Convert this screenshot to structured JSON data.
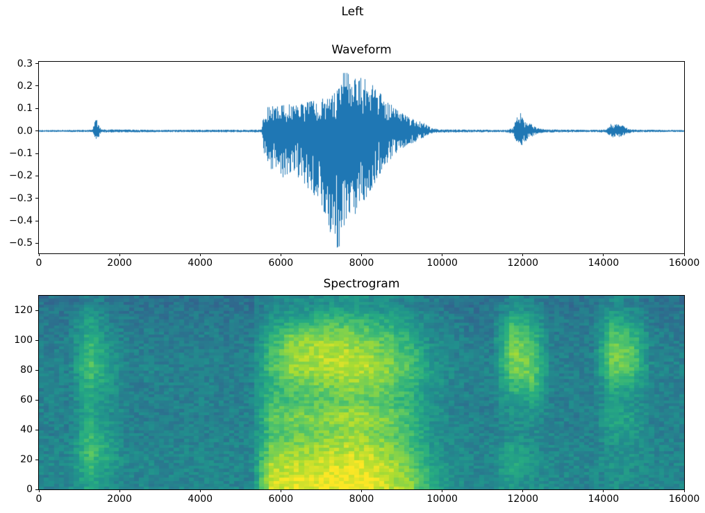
{
  "figure": {
    "title": "Left",
    "background": "#ffffff"
  },
  "chart_data": [
    {
      "type": "line",
      "title": "Waveform",
      "xlabel": "",
      "ylabel": "",
      "line_color": "#1f77b4",
      "grid": false,
      "legend": null,
      "xlim": [
        0,
        16000
      ],
      "ylim": [
        -0.545,
        0.308
      ],
      "xticks": {
        "values": [
          0,
          2000,
          4000,
          6000,
          8000,
          10000,
          12000,
          14000,
          16000
        ],
        "labels": [
          "0",
          "2000",
          "4000",
          "6000",
          "8000",
          "10000",
          "12000",
          "14000",
          "16000"
        ]
      },
      "yticks": {
        "values": [
          0.3,
          0.2,
          0.1,
          0.0,
          -0.1,
          -0.2,
          -0.3,
          -0.4,
          -0.5
        ],
        "labels": [
          "0.3",
          "0.2",
          "0.1",
          "0.0",
          "−0.1",
          "−0.2",
          "−0.3",
          "−0.4",
          "−0.5"
        ]
      },
      "envelope_format": "triples of [sample_x, min_amplitude, max_amplitude] describing the waveform envelope",
      "envelope": [
        [
          0,
          -0.004,
          0.004
        ],
        [
          1330,
          -0.005,
          0.005
        ],
        [
          1380,
          -0.03,
          0.04
        ],
        [
          1430,
          -0.045,
          0.055
        ],
        [
          1490,
          -0.025,
          0.03
        ],
        [
          1540,
          -0.007,
          0.007
        ],
        [
          3000,
          -0.005,
          0.005
        ],
        [
          5520,
          -0.006,
          0.006
        ],
        [
          5580,
          -0.12,
          0.09
        ],
        [
          5700,
          -0.18,
          0.11
        ],
        [
          5900,
          -0.16,
          0.11
        ],
        [
          6100,
          -0.22,
          0.12
        ],
        [
          6400,
          -0.2,
          0.12
        ],
        [
          6700,
          -0.26,
          0.13
        ],
        [
          7000,
          -0.32,
          0.14
        ],
        [
          7200,
          -0.44,
          0.16
        ],
        [
          7400,
          -0.52,
          0.18
        ],
        [
          7550,
          -0.5,
          0.27
        ],
        [
          7700,
          -0.42,
          0.25
        ],
        [
          7900,
          -0.35,
          0.24
        ],
        [
          8100,
          -0.3,
          0.23
        ],
        [
          8300,
          -0.24,
          0.2
        ],
        [
          8600,
          -0.15,
          0.14
        ],
        [
          8900,
          -0.09,
          0.09
        ],
        [
          9200,
          -0.06,
          0.06
        ],
        [
          9500,
          -0.035,
          0.04
        ],
        [
          9700,
          -0.015,
          0.018
        ],
        [
          9900,
          -0.007,
          0.007
        ],
        [
          11500,
          -0.005,
          0.005
        ],
        [
          11750,
          -0.012,
          0.012
        ],
        [
          11850,
          -0.055,
          0.065
        ],
        [
          11950,
          -0.07,
          0.08
        ],
        [
          12050,
          -0.05,
          0.055
        ],
        [
          12200,
          -0.028,
          0.032
        ],
        [
          12350,
          -0.014,
          0.015
        ],
        [
          12550,
          -0.007,
          0.007
        ],
        [
          13800,
          -0.005,
          0.005
        ],
        [
          14080,
          -0.008,
          0.008
        ],
        [
          14180,
          -0.027,
          0.032
        ],
        [
          14320,
          -0.03,
          0.03
        ],
        [
          14480,
          -0.022,
          0.024
        ],
        [
          14620,
          -0.01,
          0.01
        ],
        [
          14800,
          -0.006,
          0.006
        ],
        [
          16000,
          -0.004,
          0.004
        ]
      ]
    },
    {
      "type": "heatmap",
      "title": "Spectrogram",
      "xlabel": "",
      "ylabel": "",
      "colormap": "viridis",
      "legend": null,
      "xlim": [
        0,
        16000
      ],
      "ylim": [
        0,
        130
      ],
      "xticks": {
        "values": [
          0,
          2000,
          4000,
          6000,
          8000,
          10000,
          12000,
          14000,
          16000
        ],
        "labels": [
          "0",
          "2000",
          "4000",
          "6000",
          "8000",
          "10000",
          "12000",
          "14000",
          "16000"
        ]
      },
      "yticks": {
        "values": [
          0,
          20,
          40,
          60,
          80,
          100,
          120
        ],
        "labels": [
          "0",
          "20",
          "40",
          "60",
          "80",
          "100",
          "120"
        ]
      },
      "grid_format": "32 time columns left-to-right (each 500 samples wide); each profile lists 12 normalized intensities from frequency 0 (bottom) to 130 (top)",
      "grid": {
        "columns": [
          "bg1",
          "bg2",
          "stripe",
          "stripe_dim",
          "bg1",
          "bg2",
          "bg3",
          "bg1",
          "bg2",
          "bg3",
          "bg1",
          "onset",
          "sp1",
          "sp2",
          "sp3",
          "sp4",
          "sp3b",
          "sp5",
          "sp6",
          "fade",
          "bg4",
          "bg3",
          "bg2",
          "burst1",
          "burst2",
          "bg3",
          "bg2",
          "bg1",
          "burst3",
          "burst4",
          "bg2",
          "bg1"
        ],
        "profiles": {
          "bg1": [
            0.45,
            0.46,
            0.45,
            0.44,
            0.44,
            0.45,
            0.43,
            0.44,
            0.44,
            0.42,
            0.41,
            0.38
          ],
          "bg2": [
            0.46,
            0.47,
            0.46,
            0.44,
            0.43,
            0.44,
            0.44,
            0.45,
            0.43,
            0.43,
            0.41,
            0.37
          ],
          "bg3": [
            0.46,
            0.46,
            0.45,
            0.45,
            0.44,
            0.43,
            0.44,
            0.44,
            0.43,
            0.42,
            0.4,
            0.38
          ],
          "bg4": [
            0.5,
            0.5,
            0.48,
            0.47,
            0.46,
            0.46,
            0.46,
            0.47,
            0.45,
            0.44,
            0.42,
            0.39
          ],
          "stripe": [
            0.6,
            0.68,
            0.72,
            0.66,
            0.62,
            0.6,
            0.66,
            0.72,
            0.7,
            0.64,
            0.58,
            0.46
          ],
          "stripe_dim": [
            0.5,
            0.56,
            0.58,
            0.54,
            0.5,
            0.5,
            0.54,
            0.56,
            0.52,
            0.48,
            0.45,
            0.4
          ],
          "onset": [
            0.92,
            0.88,
            0.78,
            0.7,
            0.74,
            0.68,
            0.64,
            0.7,
            0.68,
            0.62,
            0.52,
            0.44
          ],
          "sp1": [
            0.95,
            0.9,
            0.83,
            0.74,
            0.78,
            0.7,
            0.74,
            0.84,
            0.84,
            0.78,
            0.58,
            0.48
          ],
          "sp2": [
            0.96,
            0.92,
            0.84,
            0.78,
            0.8,
            0.72,
            0.78,
            0.87,
            0.88,
            0.82,
            0.62,
            0.48
          ],
          "sp3": [
            0.98,
            0.94,
            0.88,
            0.8,
            0.84,
            0.74,
            0.8,
            0.9,
            0.9,
            0.83,
            0.68,
            0.52
          ],
          "sp4": [
            1.0,
            0.96,
            0.9,
            0.84,
            0.86,
            0.77,
            0.84,
            0.91,
            0.88,
            0.8,
            0.68,
            0.52
          ],
          "sp3b": [
            0.97,
            0.94,
            0.88,
            0.82,
            0.84,
            0.74,
            0.82,
            0.89,
            0.84,
            0.75,
            0.62,
            0.5
          ],
          "sp5": [
            0.9,
            0.87,
            0.8,
            0.75,
            0.77,
            0.7,
            0.75,
            0.8,
            0.75,
            0.7,
            0.58,
            0.47
          ],
          "sp6": [
            0.8,
            0.76,
            0.7,
            0.66,
            0.68,
            0.62,
            0.66,
            0.7,
            0.67,
            0.6,
            0.53,
            0.44
          ],
          "fade": [
            0.62,
            0.58,
            0.55,
            0.52,
            0.52,
            0.5,
            0.53,
            0.55,
            0.5,
            0.48,
            0.45,
            0.41
          ],
          "burst1": [
            0.54,
            0.64,
            0.58,
            0.5,
            0.5,
            0.55,
            0.68,
            0.78,
            0.83,
            0.78,
            0.66,
            0.48
          ],
          "burst2": [
            0.5,
            0.55,
            0.5,
            0.48,
            0.5,
            0.58,
            0.72,
            0.78,
            0.72,
            0.66,
            0.56,
            0.44
          ],
          "burst3": [
            0.5,
            0.52,
            0.5,
            0.56,
            0.6,
            0.54,
            0.64,
            0.78,
            0.82,
            0.74,
            0.62,
            0.48
          ],
          "burst4": [
            0.48,
            0.5,
            0.5,
            0.53,
            0.56,
            0.5,
            0.6,
            0.7,
            0.74,
            0.64,
            0.54,
            0.44
          ]
        }
      },
      "colormap_anchors": [
        "#440154",
        "#472c7a",
        "#3b518b",
        "#2c718e",
        "#21908d",
        "#27ad81",
        "#5cc863",
        "#aadc32",
        "#fde725"
      ]
    }
  ]
}
